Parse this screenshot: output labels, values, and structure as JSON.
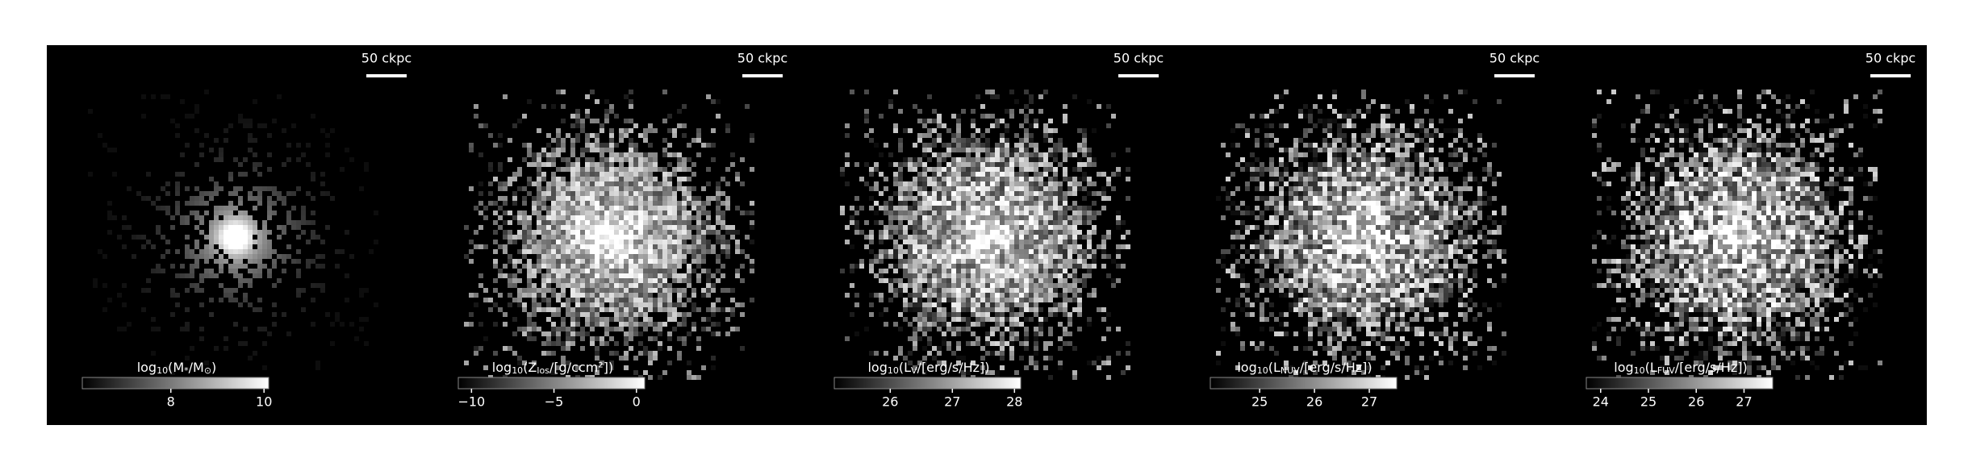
{
  "chart_data": [
    {
      "type": "image",
      "scalebar_label": "50 ckpc",
      "colorbar_label": [
        "log",
        "10",
        "(M",
        "*",
        "/M",
        "⊙",
        ")"
      ],
      "clim": [
        6.1,
        10.1
      ],
      "cticks": [
        8,
        10
      ],
      "cmap": [
        "#000000",
        "#ffffff"
      ]
    },
    {
      "type": "image",
      "scalebar_label": "50 ckpc",
      "colorbar_label": [
        "log",
        "10",
        "(Z",
        "los",
        "/[g/ccm²])"
      ],
      "clim": [
        -10.8,
        0.5
      ],
      "cticks": [
        {
          "value": -10,
          "label": "−10"
        },
        {
          "value": -5,
          "label": "−5"
        },
        0
      ],
      "cmap": [
        "#000000",
        "#ffffff"
      ]
    },
    {
      "type": "image",
      "scalebar_label": "50 ckpc",
      "colorbar_label": [
        "log",
        "10",
        "(L",
        "V",
        "/[erg/s/Hz])"
      ],
      "clim": [
        25.1,
        28.1
      ],
      "cticks": [
        26,
        27,
        28
      ],
      "cmap": [
        "#000000",
        "#ffffff"
      ]
    },
    {
      "type": "image",
      "scalebar_label": "50 ckpc",
      "colorbar_label": [
        "log",
        "10",
        "(L",
        "NUV",
        "/[erg/s/Hz])"
      ],
      "clim": [
        24.1,
        27.5
      ],
      "cticks": [
        25,
        26,
        27
      ],
      "cmap": [
        "#000000",
        "#ffffff"
      ]
    },
    {
      "type": "image",
      "scalebar_label": "50 ckpc",
      "colorbar_label": [
        "log",
        "10",
        "(L",
        "FUV",
        "/[erg/s/Hz])"
      ],
      "clim": [
        23.7,
        27.6
      ],
      "cticks": [
        24,
        25,
        26,
        27
      ],
      "cmap": [
        "#000000",
        "#ffffff"
      ]
    }
  ]
}
